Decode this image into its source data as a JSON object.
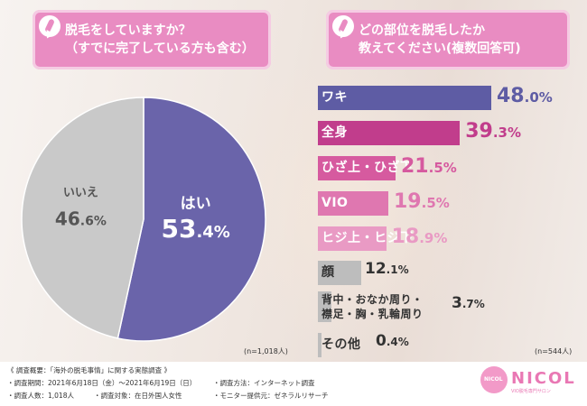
{
  "left_panel": {
    "question_line1": "脱毛をしていますか？",
    "question_line2": "（すでに完了している方も含む）",
    "sample_note": "(n=1,018人)"
  },
  "right_panel": {
    "question_line1": "どの部位を脱毛したか",
    "question_line2": "教えてください(複数回答可)",
    "sample_note": "(n=544人)"
  },
  "chart_data": [
    {
      "type": "pie",
      "categories": [
        "はい",
        "いいえ"
      ],
      "values": [
        53.4,
        46.6
      ],
      "colors": [
        "#6a64aa",
        "#c9c9c9"
      ],
      "value_labels": [
        [
          "53",
          "4%"
        ],
        [
          "46",
          "6%"
        ]
      ]
    },
    {
      "type": "bar",
      "orientation": "horizontal",
      "categories": [
        "ワキ",
        "全身",
        "ひざ上・ひざ下",
        "VIO",
        "ヒジ上・ヒジ下",
        "顔",
        "背中・おなか周り・襟足・胸・乳輪周り",
        "その他"
      ],
      "category_lines": [
        [
          "ワキ"
        ],
        [
          "全身"
        ],
        [
          "ひざ上・ひざ下"
        ],
        [
          "VIO"
        ],
        [
          "ヒジ上・ヒジ下"
        ],
        [
          "顔"
        ],
        [
          "背中・おなか周り・",
          "襟足・胸・乳輪周り"
        ],
        [
          "その他"
        ]
      ],
      "values": [
        48.0,
        39.3,
        21.5,
        19.5,
        18.9,
        12.1,
        3.7,
        0.4
      ],
      "value_parts": [
        [
          "48",
          "0%"
        ],
        [
          "39",
          "3%"
        ],
        [
          "21",
          "5%"
        ],
        [
          "19",
          "5%"
        ],
        [
          "18",
          "9%"
        ],
        [
          "12",
          "1%"
        ],
        [
          "3",
          "7%"
        ],
        [
          "0",
          "4%"
        ]
      ],
      "colors": [
        "#5e5ca4",
        "#c13d8c",
        "#d65a9f",
        "#df77b0",
        "#e99ac4",
        "#bdbdbd",
        "#bdbdbd",
        "#bdbdbd"
      ],
      "value_colors": [
        "#5e5ca4",
        "#c13d8c",
        "#d65a9f",
        "#df77b0",
        "#e99ac4",
        "#333333",
        "#333333",
        "#333333"
      ],
      "label_dark": [
        false,
        false,
        false,
        false,
        false,
        true,
        true,
        true
      ],
      "xlim": [
        0,
        50
      ]
    }
  ],
  "footer": {
    "line1": "《 調査概要：「海外の脱毛事情」に関する実態調査 》",
    "period": "・調査期間：2021年6月18日（金）〜2021年6月19日（日）",
    "count": "・調査人数：1,018人",
    "target": "・調査対象：在日外国人女性",
    "method": "・調査方法：インターネット調査",
    "provider": "・モニター提供元：ゼネラルリサーチ"
  },
  "logo": {
    "name": "NICOL",
    "badge": "NICOL",
    "tagline": "VIO脱毛専門サロン"
  }
}
